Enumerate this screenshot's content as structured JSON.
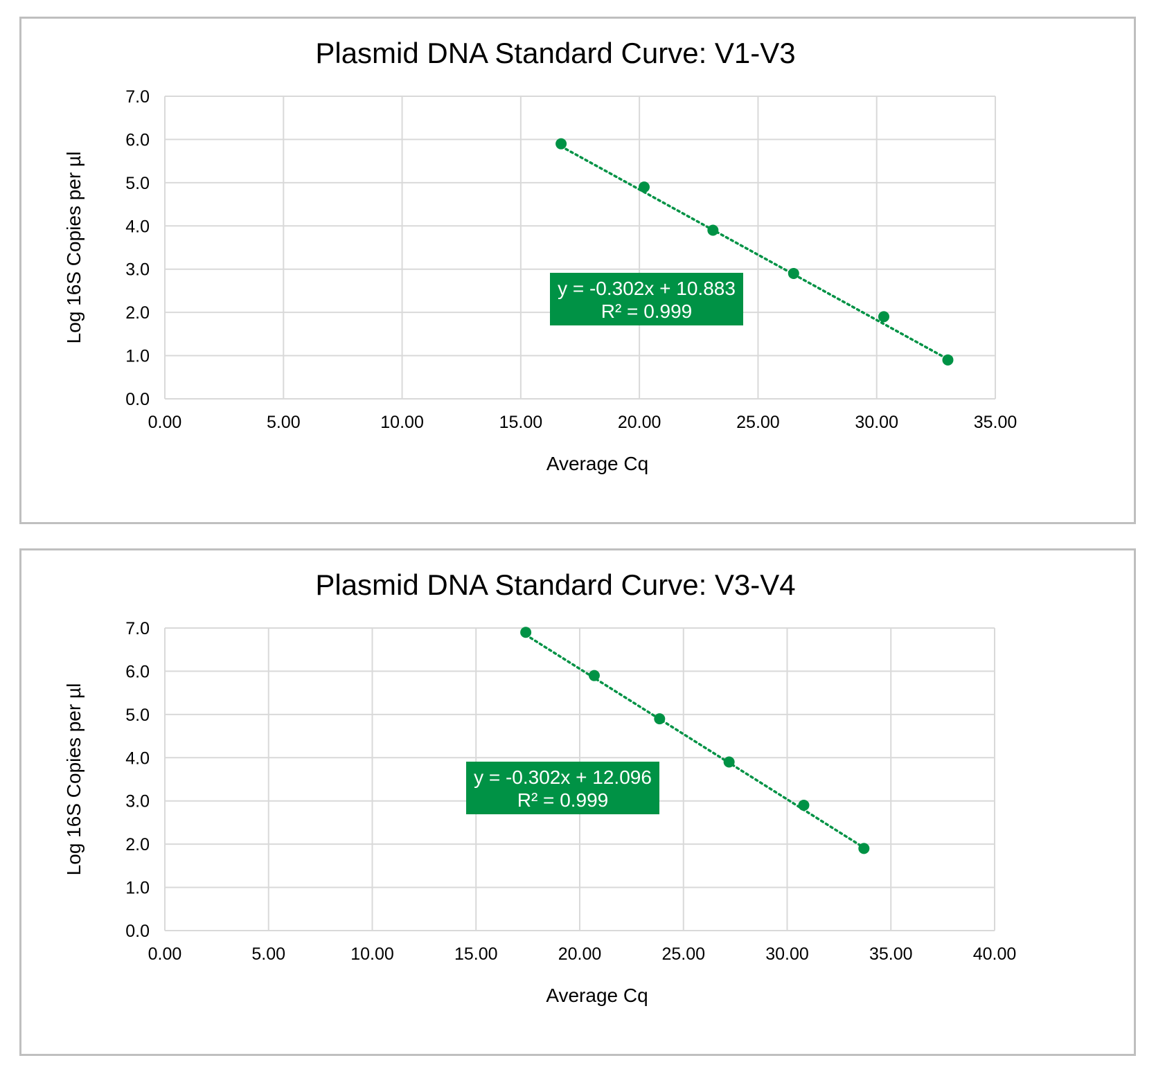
{
  "chart_data": [
    {
      "type": "scatter",
      "title": "Plasmid DNA Standard Curve: V1-V3",
      "xlabel": "Average Cq",
      "ylabel": "Log 16S Copies per µl",
      "xlim": [
        0,
        35
      ],
      "ylim": [
        0,
        7
      ],
      "xticks": [
        "0.00",
        "5.00",
        "10.00",
        "15.00",
        "20.00",
        "25.00",
        "30.00",
        "35.00"
      ],
      "yticks": [
        "0.0",
        "1.0",
        "2.0",
        "3.0",
        "4.0",
        "5.0",
        "6.0",
        "7.0"
      ],
      "grid": true,
      "x": [
        16.7,
        20.2,
        23.1,
        26.5,
        30.3,
        33.0
      ],
      "y": [
        5.9,
        4.9,
        3.9,
        2.9,
        1.9,
        0.9
      ],
      "trendline": {
        "type": "linear",
        "style": "dotted",
        "slope": -0.302,
        "intercept": 10.883,
        "equation": "y = -0.302x + 10.883",
        "r2": "R² = 0.999"
      },
      "color": "#009245"
    },
    {
      "type": "scatter",
      "title": "Plasmid DNA Standard Curve: V3-V4",
      "xlabel": "Average Cq",
      "ylabel": "Log 16S Copies per µl",
      "xlim": [
        0,
        40
      ],
      "ylim": [
        0,
        7
      ],
      "xticks": [
        "0.00",
        "5.00",
        "10.00",
        "15.00",
        "20.00",
        "25.00",
        "30.00",
        "35.00",
        "40.00"
      ],
      "yticks": [
        "0.0",
        "1.0",
        "2.0",
        "3.0",
        "4.0",
        "5.0",
        "6.0",
        "7.0"
      ],
      "grid": true,
      "x": [
        17.4,
        20.7,
        23.85,
        27.2,
        30.8,
        33.7
      ],
      "y": [
        6.9,
        5.9,
        4.9,
        3.9,
        2.9,
        1.9
      ],
      "trendline": {
        "type": "linear",
        "style": "dotted",
        "slope": -0.302,
        "intercept": 12.096,
        "equation": "y = -0.302x + 12.096",
        "r2": "R² = 0.999"
      },
      "color": "#009245"
    }
  ]
}
